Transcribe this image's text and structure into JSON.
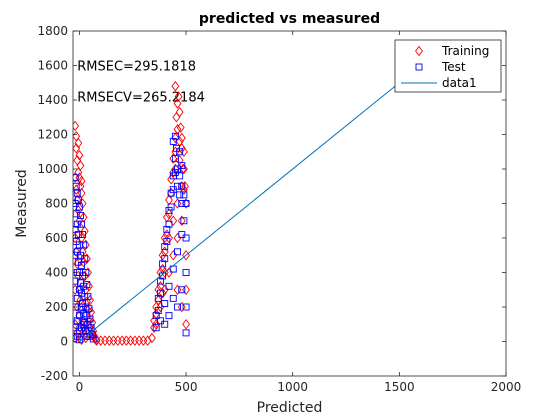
{
  "chart_data": {
    "type": "scatter",
    "title": "predicted vs measured",
    "xlabel": "Predicted",
    "ylabel": "Measured",
    "xlim": [
      -30,
      2000
    ],
    "ylim": [
      -200,
      1800
    ],
    "xticks": [
      0,
      500,
      1000,
      1500,
      2000
    ],
    "yticks": [
      -200,
      0,
      200,
      400,
      600,
      800,
      1000,
      1200,
      1400,
      1600,
      1800
    ],
    "grid": false,
    "legend_position": "top-right",
    "annotations": [
      {
        "text": "RMSEC=295.1818",
        "x": -10,
        "y": 1600
      },
      {
        "text": "RMSECV=265.2184",
        "x": -10,
        "y": 1420
      }
    ],
    "series": [
      {
        "name": "Training",
        "marker": "diamond",
        "color": "#ff0000",
        "filled": false,
        "points": [
          [
            -20,
            1250
          ],
          [
            -15,
            1120
          ],
          [
            -10,
            1050
          ],
          [
            -5,
            980
          ],
          [
            0,
            950
          ],
          [
            5,
            900
          ],
          [
            10,
            860
          ],
          [
            15,
            800
          ],
          [
            20,
            720
          ],
          [
            25,
            640
          ],
          [
            30,
            560
          ],
          [
            35,
            480
          ],
          [
            40,
            400
          ],
          [
            45,
            320
          ],
          [
            50,
            240
          ],
          [
            55,
            170
          ],
          [
            60,
            110
          ],
          [
            65,
            60
          ],
          [
            70,
            30
          ],
          [
            75,
            15
          ],
          [
            80,
            10
          ],
          [
            -20,
            950
          ],
          [
            -15,
            880
          ],
          [
            -10,
            820
          ],
          [
            -5,
            760
          ],
          [
            0,
            700
          ],
          [
            5,
            660
          ],
          [
            10,
            600
          ],
          [
            15,
            520
          ],
          [
            20,
            460
          ],
          [
            25,
            380
          ],
          [
            30,
            300
          ],
          [
            35,
            230
          ],
          [
            40,
            180
          ],
          [
            45,
            120
          ],
          [
            50,
            80
          ],
          [
            60,
            40
          ],
          [
            -20,
            600
          ],
          [
            -15,
            520
          ],
          [
            -10,
            450
          ],
          [
            -5,
            380
          ],
          [
            0,
            300
          ],
          [
            5,
            240
          ],
          [
            10,
            180
          ],
          [
            15,
            120
          ],
          [
            20,
            80
          ],
          [
            25,
            40
          ],
          [
            30,
            20
          ],
          [
            -20,
            300
          ],
          [
            -10,
            200
          ],
          [
            0,
            150
          ],
          [
            10,
            100
          ],
          [
            20,
            60
          ],
          [
            -20,
            100
          ],
          [
            -10,
            50
          ],
          [
            0,
            20
          ],
          [
            10,
            10
          ],
          [
            -20,
            20
          ],
          [
            -5,
            1150
          ],
          [
            0,
            1080
          ],
          [
            5,
            1020
          ],
          [
            -15,
            1190
          ],
          [
            10,
            930
          ],
          [
            80,
            5
          ],
          [
            100,
            5
          ],
          [
            120,
            5
          ],
          [
            140,
            5
          ],
          [
            160,
            5
          ],
          [
            180,
            5
          ],
          [
            200,
            5
          ],
          [
            220,
            5
          ],
          [
            240,
            5
          ],
          [
            260,
            5
          ],
          [
            280,
            5
          ],
          [
            300,
            5
          ],
          [
            320,
            5
          ],
          [
            340,
            20
          ],
          [
            350,
            80
          ],
          [
            360,
            160
          ],
          [
            370,
            240
          ],
          [
            380,
            320
          ],
          [
            390,
            420
          ],
          [
            400,
            520
          ],
          [
            410,
            620
          ],
          [
            420,
            740
          ],
          [
            430,
            860
          ],
          [
            440,
            980
          ],
          [
            450,
            1100
          ],
          [
            460,
            1230
          ],
          [
            470,
            1160
          ],
          [
            480,
            1120
          ],
          [
            490,
            1000
          ],
          [
            495,
            900
          ],
          [
            500,
            800
          ],
          [
            350,
            120
          ],
          [
            360,
            200
          ],
          [
            370,
            300
          ],
          [
            380,
            400
          ],
          [
            390,
            500
          ],
          [
            400,
            600
          ],
          [
            410,
            720
          ],
          [
            420,
            820
          ],
          [
            430,
            940
          ],
          [
            440,
            1060
          ],
          [
            450,
            1180
          ],
          [
            455,
            1300
          ],
          [
            460,
            1380
          ],
          [
            450,
            1480
          ],
          [
            465,
            1420
          ],
          [
            470,
            1330
          ],
          [
            475,
            1240
          ],
          [
            480,
            1180
          ],
          [
            485,
            1000
          ],
          [
            490,
            880
          ],
          [
            360,
            100
          ],
          [
            380,
            200
          ],
          [
            400,
            300
          ],
          [
            420,
            400
          ],
          [
            440,
            500
          ],
          [
            460,
            600
          ],
          [
            480,
            700
          ],
          [
            500,
            500
          ],
          [
            500,
            300
          ],
          [
            500,
            100
          ],
          [
            480,
            200
          ],
          [
            460,
            300
          ],
          [
            440,
            700
          ],
          [
            460,
            800
          ],
          [
            480,
            900
          ],
          [
            420,
            600
          ],
          [
            400,
            400
          ],
          [
            390,
            280
          ],
          [
            450,
            1000
          ],
          [
            470,
            1050
          ],
          [
            490,
            1100
          ]
        ]
      },
      {
        "name": "Test",
        "marker": "square",
        "color": "#0000ff",
        "filled": false,
        "points": [
          [
            -20,
            950
          ],
          [
            -15,
            900
          ],
          [
            -10,
            860
          ],
          [
            -5,
            820
          ],
          [
            0,
            780
          ],
          [
            5,
            730
          ],
          [
            10,
            680
          ],
          [
            15,
            620
          ],
          [
            20,
            560
          ],
          [
            25,
            480
          ],
          [
            30,
            400
          ],
          [
            35,
            330
          ],
          [
            40,
            260
          ],
          [
            45,
            190
          ],
          [
            50,
            130
          ],
          [
            55,
            80
          ],
          [
            60,
            40
          ],
          [
            65,
            15
          ],
          [
            -20,
            800
          ],
          [
            -15,
            740
          ],
          [
            -10,
            680
          ],
          [
            -5,
            620
          ],
          [
            0,
            560
          ],
          [
            5,
            500
          ],
          [
            10,
            440
          ],
          [
            15,
            380
          ],
          [
            20,
            320
          ],
          [
            25,
            260
          ],
          [
            30,
            200
          ],
          [
            35,
            150
          ],
          [
            40,
            100
          ],
          [
            45,
            60
          ],
          [
            50,
            30
          ],
          [
            -20,
            650
          ],
          [
            -15,
            580
          ],
          [
            -10,
            520
          ],
          [
            -5,
            460
          ],
          [
            0,
            400
          ],
          [
            5,
            340
          ],
          [
            10,
            280
          ],
          [
            15,
            220
          ],
          [
            20,
            160
          ],
          [
            25,
            110
          ],
          [
            30,
            60
          ],
          [
            35,
            30
          ],
          [
            -20,
            500
          ],
          [
            -10,
            400
          ],
          [
            0,
            300
          ],
          [
            10,
            200
          ],
          [
            20,
            100
          ],
          [
            -20,
            350
          ],
          [
            -10,
            250
          ],
          [
            0,
            150
          ],
          [
            10,
            80
          ],
          [
            -20,
            200
          ],
          [
            -10,
            120
          ],
          [
            0,
            60
          ],
          [
            -20,
            80
          ],
          [
            -10,
            30
          ],
          [
            0,
            10
          ],
          [
            360,
            150
          ],
          [
            370,
            250
          ],
          [
            380,
            350
          ],
          [
            390,
            450
          ],
          [
            400,
            550
          ],
          [
            410,
            650
          ],
          [
            420,
            760
          ],
          [
            430,
            860
          ],
          [
            440,
            960
          ],
          [
            450,
            1060
          ],
          [
            455,
            1120
          ],
          [
            460,
            1000
          ],
          [
            470,
            960
          ],
          [
            480,
            900
          ],
          [
            490,
            850
          ],
          [
            500,
            800
          ],
          [
            360,
            80
          ],
          [
            370,
            180
          ],
          [
            380,
            280
          ],
          [
            390,
            380
          ],
          [
            400,
            480
          ],
          [
            410,
            580
          ],
          [
            420,
            680
          ],
          [
            430,
            780
          ],
          [
            440,
            880
          ],
          [
            450,
            980
          ],
          [
            460,
            900
          ],
          [
            470,
            850
          ],
          [
            480,
            800
          ],
          [
            490,
            700
          ],
          [
            500,
            600
          ],
          [
            380,
            120
          ],
          [
            400,
            220
          ],
          [
            420,
            320
          ],
          [
            440,
            420
          ],
          [
            460,
            520
          ],
          [
            480,
            620
          ],
          [
            500,
            400
          ],
          [
            500,
            200
          ],
          [
            500,
            50
          ],
          [
            480,
            300
          ],
          [
            460,
            200
          ],
          [
            440,
            250
          ],
          [
            420,
            150
          ],
          [
            400,
            100
          ],
          [
            440,
            1160
          ],
          [
            450,
            1190
          ],
          [
            470,
            1100
          ],
          [
            480,
            1020
          ]
        ]
      },
      {
        "name": "data1",
        "marker": "line",
        "color": "#0072bd",
        "points": [
          [
            0,
            0
          ],
          [
            1600,
            1600
          ]
        ]
      }
    ]
  }
}
